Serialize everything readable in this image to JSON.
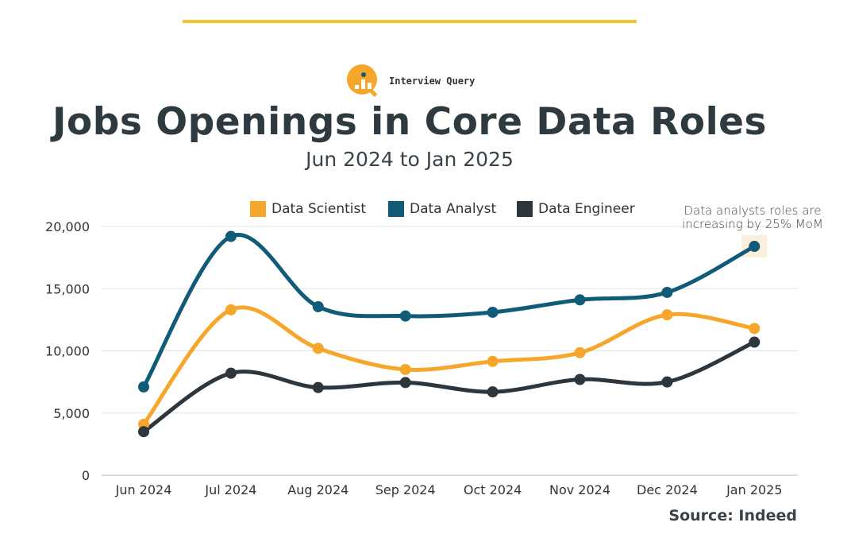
{
  "header": {
    "brand": "Interview Query",
    "title": "Jobs Openings in Core Data Roles",
    "subtitle": "Jun 2024 to Jan 2025",
    "source": "Source: Indeed"
  },
  "chart_data": {
    "type": "line",
    "title": "Jobs Openings in Core Data Roles",
    "subtitle": "Jun 2024 to Jan 2025",
    "xlabel": "",
    "ylabel": "",
    "categories": [
      "Jun 2024",
      "Jul 2024",
      "Aug 2024",
      "Sep 2024",
      "Oct 2024",
      "Nov 2024",
      "Dec 2024",
      "Jan 2025"
    ],
    "ylim": [
      0,
      20000
    ],
    "yticks": [
      0,
      5000,
      10000,
      15000,
      20000
    ],
    "ytick_labels": [
      "0",
      "5,000",
      "10,000",
      "15,000",
      "20,000"
    ],
    "grid": true,
    "legend_position": "top",
    "series": [
      {
        "name": "Data Scientist",
        "color": "#f6a72b",
        "values": [
          4100,
          13300,
          10200,
          8500,
          9150,
          9850,
          12900,
          11800
        ]
      },
      {
        "name": "Data Analyst",
        "color": "#0f5b78",
        "values": [
          7100,
          19200,
          13550,
          12800,
          13100,
          14100,
          14700,
          18400
        ]
      },
      {
        "name": "Data Engineer",
        "color": "#2d353d",
        "values": [
          3500,
          8200,
          7050,
          7450,
          6700,
          7700,
          7500,
          10700
        ]
      }
    ],
    "annotation": {
      "lines": [
        "Data analysts roles are",
        "increasing by 25% MoM"
      ],
      "series": "Data Analyst",
      "category": "Jan 2025"
    }
  }
}
